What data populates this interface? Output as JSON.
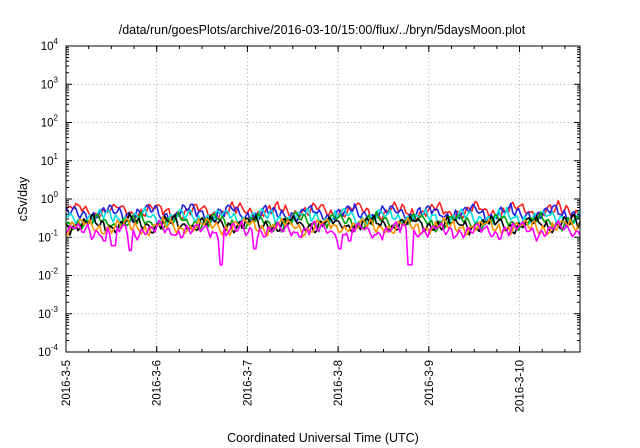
{
  "chart_data": {
    "type": "line",
    "title": "/data/run/goesPlots/archive/2016-03-10/15:00/flux/../bryn/5daysMoon.plot",
    "xlabel": "Coordinated Universal Time (UTC)",
    "ylabel": "cSv/day",
    "x_ticks": [
      "2016-3-5",
      "2016-3-6",
      "2016-3-7",
      "2016-3-8",
      "2016-3-9",
      "2016-3-10"
    ],
    "xlim": [
      "2016-03-05T00:00",
      "2016-03-10T16:00"
    ],
    "y_scale": "log",
    "ylim": [
      0.0001,
      10000
    ],
    "y_ticks": [
      {
        "base": "10",
        "exp": "4"
      },
      {
        "base": "10",
        "exp": "3"
      },
      {
        "base": "10",
        "exp": "2"
      },
      {
        "base": "10",
        "exp": "1"
      },
      {
        "base": "10",
        "exp": "0"
      },
      {
        "base": "10",
        "exp": "-1"
      },
      {
        "base": "10",
        "exp": "-2"
      },
      {
        "base": "10",
        "exp": "-3"
      },
      {
        "base": "10",
        "exp": "-4"
      }
    ],
    "grid": true,
    "legend": "none",
    "series": [
      {
        "color": "#ff2020",
        "mean": 0.48,
        "dips": []
      },
      {
        "color": "#2020e0",
        "mean": 0.43,
        "dips": []
      },
      {
        "color": "#00e0e0",
        "mean": 0.33,
        "dips": []
      },
      {
        "color": "#00a000",
        "mean": 0.25,
        "dips": []
      },
      {
        "color": "#000000",
        "mean": 0.22,
        "dips": []
      },
      {
        "color": "#ff9000",
        "mean": 0.19,
        "dips": []
      },
      {
        "color": "#ff00ff",
        "mean": 0.15,
        "dips": [
          {
            "x": "2016-03-05T10:00",
            "y": 0.08
          },
          {
            "x": "2016-03-05T12:30",
            "y": 0.06
          },
          {
            "x": "2016-03-05T17:00",
            "y": 0.045
          },
          {
            "x": "2016-03-06T17:00",
            "y": 0.019
          },
          {
            "x": "2016-03-07T02:00",
            "y": 0.05
          },
          {
            "x": "2016-03-08T00:30",
            "y": 0.05
          },
          {
            "x": "2016-03-08T03:00",
            "y": 0.08
          },
          {
            "x": "2016-03-08T19:00",
            "y": 0.019
          }
        ]
      }
    ]
  }
}
